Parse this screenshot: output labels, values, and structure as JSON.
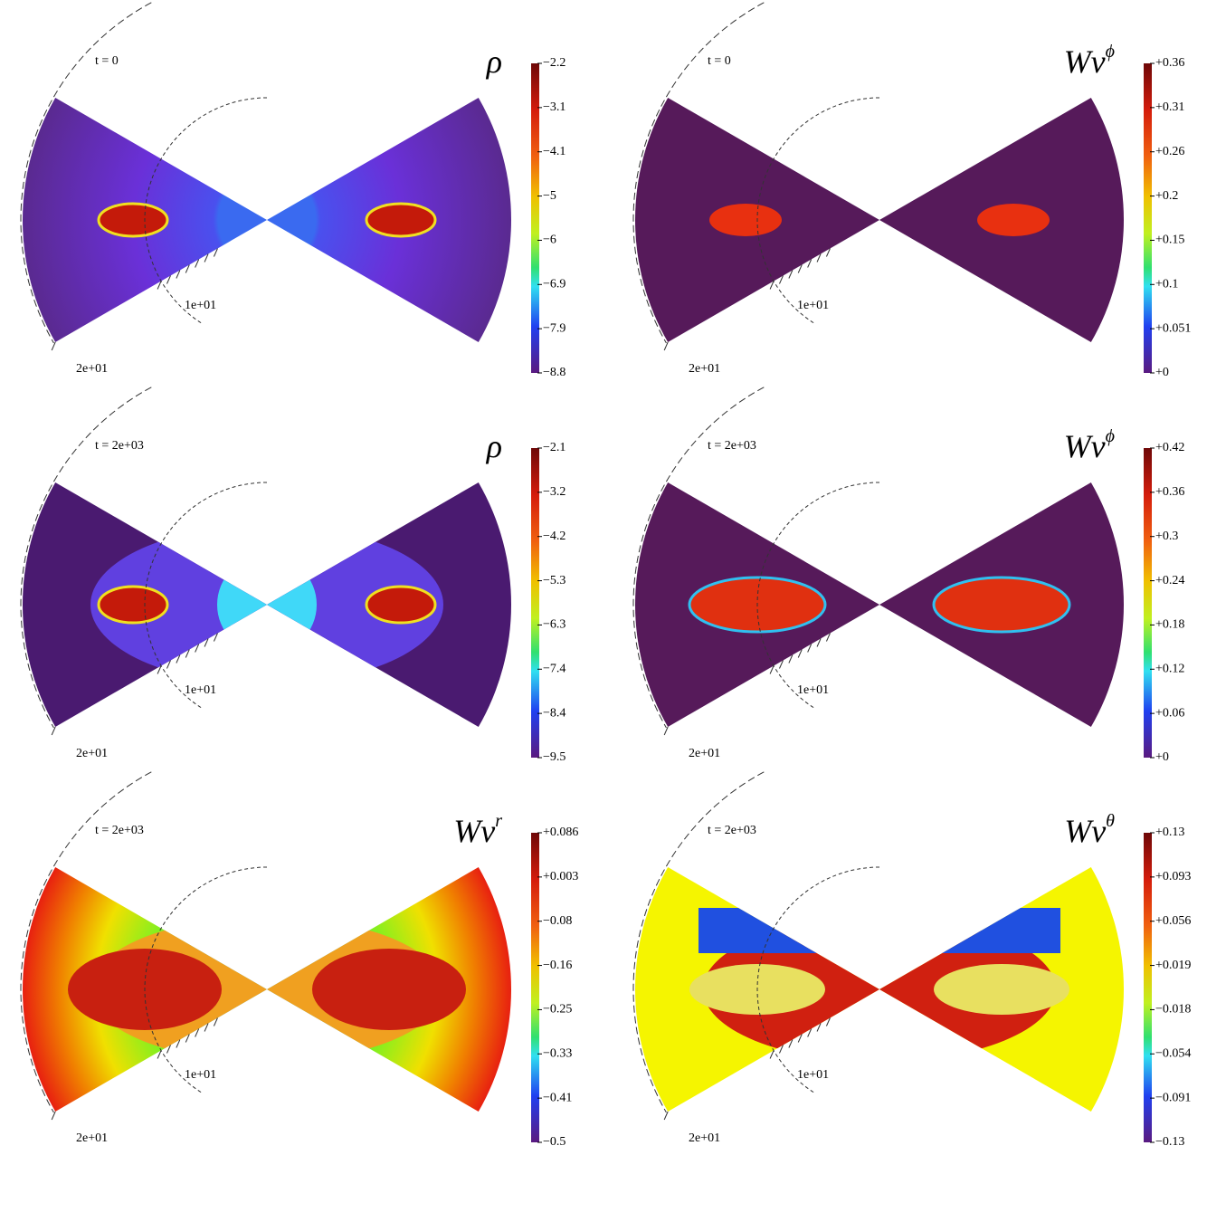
{
  "panels": [
    {
      "time": "t = 0",
      "quantity": {
        "base": "ρ"
      },
      "colorbar": [
        "−2.2",
        "−3.1",
        "−4.1",
        "−5",
        "−6",
        "−6.9",
        "−7.9",
        "−8.8"
      ],
      "r1": "1e+01",
      "r2": "2e+01"
    },
    {
      "time": "t = 0",
      "quantity": {
        "base": "Wv",
        "sup": "ϕ"
      },
      "colorbar": [
        "+0.36",
        "+0.31",
        "+0.26",
        "+0.2",
        "+0.15",
        "+0.1",
        "+0.051",
        "+0"
      ],
      "r1": "1e+01",
      "r2": "2e+01"
    },
    {
      "time": "t = 2e+03",
      "quantity": {
        "base": "ρ"
      },
      "colorbar": [
        "−2.1",
        "−3.2",
        "−4.2",
        "−5.3",
        "−6.3",
        "−7.4",
        "−8.4",
        "−9.5"
      ],
      "r1": "1e+01",
      "r2": "2e+01"
    },
    {
      "time": "t = 2e+03",
      "quantity": {
        "base": "Wv",
        "sup": "ϕ"
      },
      "colorbar": [
        "+0.42",
        "+0.36",
        "+0.3",
        "+0.24",
        "+0.18",
        "+0.12",
        "+0.06",
        "+0"
      ],
      "r1": "1e+01",
      "r2": "2e+01"
    },
    {
      "time": "t = 2e+03",
      "quantity": {
        "base": "Wv",
        "sup": "r"
      },
      "colorbar": [
        "+0.086",
        "+0.003",
        "−0.08",
        "−0.16",
        "−0.25",
        "−0.33",
        "−0.41",
        "−0.5"
      ],
      "r1": "1e+01",
      "r2": "2e+01"
    },
    {
      "time": "t = 2e+03",
      "quantity": {
        "base": "Wv",
        "sup": "θ"
      },
      "colorbar": [
        "+0.13",
        "+0.093",
        "+0.056",
        "+0.019",
        "−0.018",
        "−0.054",
        "−0.091",
        "−0.13"
      ],
      "r1": "1e+01",
      "r2": "2e+01"
    }
  ]
}
